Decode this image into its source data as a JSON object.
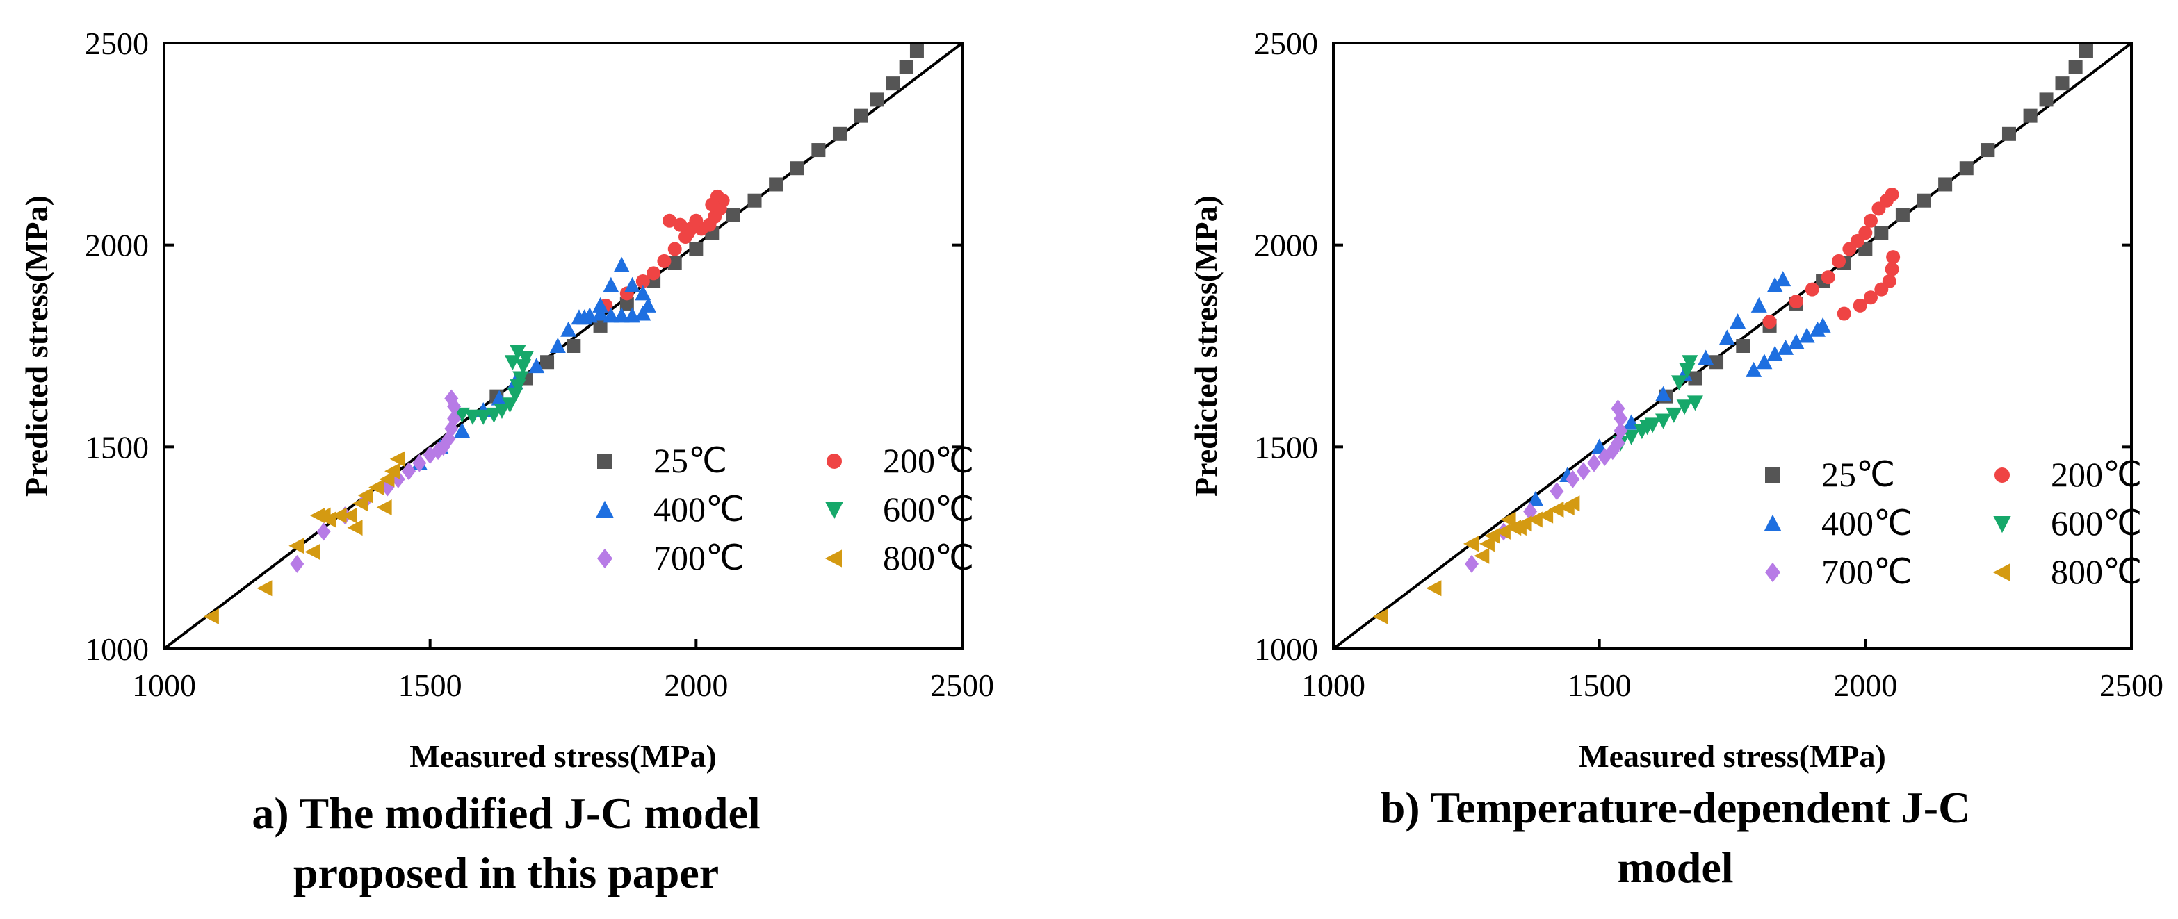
{
  "series_meta": [
    {
      "name": "25℃",
      "color": "#555555",
      "marker": "square"
    },
    {
      "name": "200℃",
      "color": "#ef4444",
      "marker": "circle"
    },
    {
      "name": "400℃",
      "color": "#1e6fe0",
      "marker": "triangle-up"
    },
    {
      "name": "600℃",
      "color": "#16a86a",
      "marker": "triangle-down"
    },
    {
      "name": "700℃",
      "color": "#b77be6",
      "marker": "diamond"
    },
    {
      "name": "800℃",
      "color": "#d49a12",
      "marker": "triangle-left"
    }
  ],
  "chart_data": [
    {
      "type": "scatter",
      "title": "",
      "caption_lines": [
        "a)  The modified J-C model",
        "proposed in this paper"
      ],
      "xlabel": "Measured stress(MPa)",
      "ylabel": "Predicted stress(MPa)",
      "xlim": [
        1000,
        2500
      ],
      "ylim": [
        1000,
        2500
      ],
      "xticks": [
        "1000",
        "1500",
        "2000",
        "2500"
      ],
      "yticks": [
        "1000",
        "1500",
        "2000",
        "2500"
      ],
      "reference_line": "y = x",
      "legend_position": "bottom-right",
      "series": [
        {
          "name": "25℃",
          "points": [
            [
              1625,
              1625
            ],
            [
              1680,
              1670
            ],
            [
              1720,
              1710
            ],
            [
              1770,
              1750
            ],
            [
              1820,
              1800
            ],
            [
              1870,
              1855
            ],
            [
              1920,
              1910
            ],
            [
              1960,
              1955
            ],
            [
              2000,
              1990
            ],
            [
              2030,
              2030
            ],
            [
              2070,
              2075
            ],
            [
              2110,
              2110
            ],
            [
              2150,
              2150
            ],
            [
              2190,
              2190
            ],
            [
              2230,
              2235
            ],
            [
              2270,
              2275
            ],
            [
              2310,
              2320
            ],
            [
              2340,
              2360
            ],
            [
              2370,
              2400
            ],
            [
              2395,
              2440
            ],
            [
              2415,
              2480
            ]
          ]
        },
        {
          "name": "200℃",
          "points": [
            [
              1830,
              1850
            ],
            [
              1870,
              1880
            ],
            [
              1900,
              1910
            ],
            [
              1920,
              1930
            ],
            [
              1940,
              1960
            ],
            [
              1960,
              1990
            ],
            [
              1950,
              2060
            ],
            [
              1970,
              2050
            ],
            [
              1990,
              2040
            ],
            [
              2010,
              2040
            ],
            [
              2025,
              2050
            ],
            [
              2035,
              2070
            ],
            [
              2045,
              2090
            ],
            [
              2050,
              2110
            ],
            [
              2040,
              2120
            ],
            [
              2030,
              2100
            ],
            [
              2000,
              2060
            ],
            [
              1985,
              2030
            ],
            [
              1980,
              2020
            ]
          ]
        },
        {
          "name": "400℃",
          "points": [
            [
              1480,
              1460
            ],
            [
              1520,
              1500
            ],
            [
              1560,
              1540
            ],
            [
              1600,
              1590
            ],
            [
              1630,
              1620
            ],
            [
              1660,
              1660
            ],
            [
              1700,
              1700
            ],
            [
              1740,
              1750
            ],
            [
              1760,
              1790
            ],
            [
              1790,
              1820
            ],
            [
              1820,
              1850
            ],
            [
              1840,
              1900
            ],
            [
              1860,
              1950
            ],
            [
              1880,
              1900
            ],
            [
              1900,
              1880
            ],
            [
              1910,
              1850
            ],
            [
              1900,
              1830
            ],
            [
              1880,
              1825
            ],
            [
              1860,
              1825
            ],
            [
              1840,
              1825
            ],
            [
              1820,
              1830
            ],
            [
              1800,
              1825
            ],
            [
              1780,
              1820
            ]
          ]
        },
        {
          "name": "600℃",
          "points": [
            [
              1560,
              1580
            ],
            [
              1580,
              1575
            ],
            [
              1600,
              1575
            ],
            [
              1620,
              1580
            ],
            [
              1635,
              1590
            ],
            [
              1650,
              1605
            ],
            [
              1660,
              1630
            ],
            [
              1665,
              1650
            ],
            [
              1670,
              1670
            ],
            [
              1675,
              1700
            ],
            [
              1680,
              1720
            ],
            [
              1665,
              1735
            ],
            [
              1655,
              1710
            ]
          ]
        },
        {
          "name": "700℃",
          "points": [
            [
              1250,
              1210
            ],
            [
              1300,
              1290
            ],
            [
              1340,
              1330
            ],
            [
              1380,
              1370
            ],
            [
              1420,
              1400
            ],
            [
              1440,
              1420
            ],
            [
              1460,
              1440
            ],
            [
              1480,
              1460
            ],
            [
              1500,
              1480
            ],
            [
              1515,
              1490
            ],
            [
              1525,
              1500
            ],
            [
              1535,
              1520
            ],
            [
              1540,
              1545
            ],
            [
              1545,
              1570
            ],
            [
              1545,
              1600
            ],
            [
              1540,
              1620
            ]
          ]
        },
        {
          "name": "800℃",
          "points": [
            [
              1090,
              1080
            ],
            [
              1190,
              1150
            ],
            [
              1250,
              1255
            ],
            [
              1280,
              1240
            ],
            [
              1290,
              1330
            ],
            [
              1310,
              1320
            ],
            [
              1330,
              1330
            ],
            [
              1350,
              1330
            ],
            [
              1370,
              1360
            ],
            [
              1380,
              1380
            ],
            [
              1400,
              1400
            ],
            [
              1420,
              1420
            ],
            [
              1430,
              1440
            ],
            [
              1440,
              1470
            ],
            [
              1415,
              1350
            ],
            [
              1360,
              1300
            ],
            [
              1300,
              1330
            ]
          ]
        }
      ]
    },
    {
      "type": "scatter",
      "title": "",
      "caption_lines": [
        "b) Temperature-dependent J-C",
        "model"
      ],
      "xlabel": "Measured stress(MPa)",
      "ylabel": "Predicted stress(MPa)",
      "xlim": [
        1000,
        2500
      ],
      "ylim": [
        1000,
        2500
      ],
      "xticks": [
        "1000",
        "1500",
        "2000",
        "2500"
      ],
      "yticks": [
        "1000",
        "1500",
        "2000",
        "2500"
      ],
      "reference_line": "y = x",
      "legend_position": "bottom-right",
      "series": [
        {
          "name": "25℃",
          "points": [
            [
              1625,
              1625
            ],
            [
              1680,
              1670
            ],
            [
              1720,
              1710
            ],
            [
              1770,
              1750
            ],
            [
              1820,
              1800
            ],
            [
              1870,
              1855
            ],
            [
              1920,
              1910
            ],
            [
              1960,
              1955
            ],
            [
              2000,
              1990
            ],
            [
              2030,
              2030
            ],
            [
              2070,
              2075
            ],
            [
              2110,
              2110
            ],
            [
              2150,
              2150
            ],
            [
              2190,
              2190
            ],
            [
              2230,
              2235
            ],
            [
              2270,
              2275
            ],
            [
              2310,
              2320
            ],
            [
              2340,
              2360
            ],
            [
              2370,
              2400
            ],
            [
              2395,
              2440
            ],
            [
              2415,
              2480
            ]
          ]
        },
        {
          "name": "200℃",
          "points": [
            [
              1820,
              1810
            ],
            [
              1870,
              1860
            ],
            [
              1900,
              1890
            ],
            [
              1930,
              1920
            ],
            [
              1950,
              1960
            ],
            [
              1970,
              1990
            ],
            [
              1985,
              2010
            ],
            [
              2000,
              2030
            ],
            [
              2010,
              2060
            ],
            [
              2025,
              2090
            ],
            [
              2040,
              2110
            ],
            [
              2050,
              2125
            ],
            [
              1960,
              1830
            ],
            [
              1990,
              1850
            ],
            [
              2010,
              1870
            ],
            [
              2030,
              1890
            ],
            [
              2045,
              1910
            ],
            [
              2050,
              1940
            ],
            [
              2052,
              1970
            ]
          ]
        },
        {
          "name": "400℃",
          "points": [
            [
              1380,
              1370
            ],
            [
              1440,
              1430
            ],
            [
              1500,
              1500
            ],
            [
              1560,
              1560
            ],
            [
              1620,
              1630
            ],
            [
              1660,
              1680
            ],
            [
              1700,
              1720
            ],
            [
              1740,
              1770
            ],
            [
              1760,
              1810
            ],
            [
              1800,
              1850
            ],
            [
              1830,
              1900
            ],
            [
              1845,
              1915
            ],
            [
              1790,
              1690
            ],
            [
              1810,
              1710
            ],
            [
              1830,
              1730
            ],
            [
              1850,
              1745
            ],
            [
              1870,
              1760
            ],
            [
              1890,
              1775
            ],
            [
              1910,
              1790
            ],
            [
              1920,
              1800
            ]
          ]
        },
        {
          "name": "600℃",
          "points": [
            [
              1540,
              1510
            ],
            [
              1560,
              1525
            ],
            [
              1580,
              1540
            ],
            [
              1600,
              1555
            ],
            [
              1620,
              1565
            ],
            [
              1640,
              1580
            ],
            [
              1660,
              1600
            ],
            [
              1680,
              1610
            ],
            [
              1590,
              1550
            ],
            [
              1650,
              1660
            ],
            [
              1665,
              1690
            ],
            [
              1670,
              1710
            ]
          ]
        },
        {
          "name": "700℃",
          "points": [
            [
              1260,
              1210
            ],
            [
              1320,
              1290
            ],
            [
              1370,
              1340
            ],
            [
              1420,
              1390
            ],
            [
              1450,
              1420
            ],
            [
              1470,
              1440
            ],
            [
              1490,
              1460
            ],
            [
              1510,
              1475
            ],
            [
              1525,
              1490
            ],
            [
              1535,
              1510
            ],
            [
              1540,
              1540
            ],
            [
              1540,
              1570
            ],
            [
              1535,
              1595
            ]
          ]
        },
        {
          "name": "800℃",
          "points": [
            [
              1090,
              1080
            ],
            [
              1190,
              1150
            ],
            [
              1260,
              1260
            ],
            [
              1280,
              1230
            ],
            [
              1290,
              1260
            ],
            [
              1300,
              1280
            ],
            [
              1320,
              1290
            ],
            [
              1340,
              1300
            ],
            [
              1360,
              1310
            ],
            [
              1380,
              1320
            ],
            [
              1400,
              1330
            ],
            [
              1420,
              1345
            ],
            [
              1440,
              1350
            ],
            [
              1450,
              1360
            ],
            [
              1330,
              1320
            ],
            [
              1350,
              1300
            ]
          ]
        }
      ]
    }
  ]
}
